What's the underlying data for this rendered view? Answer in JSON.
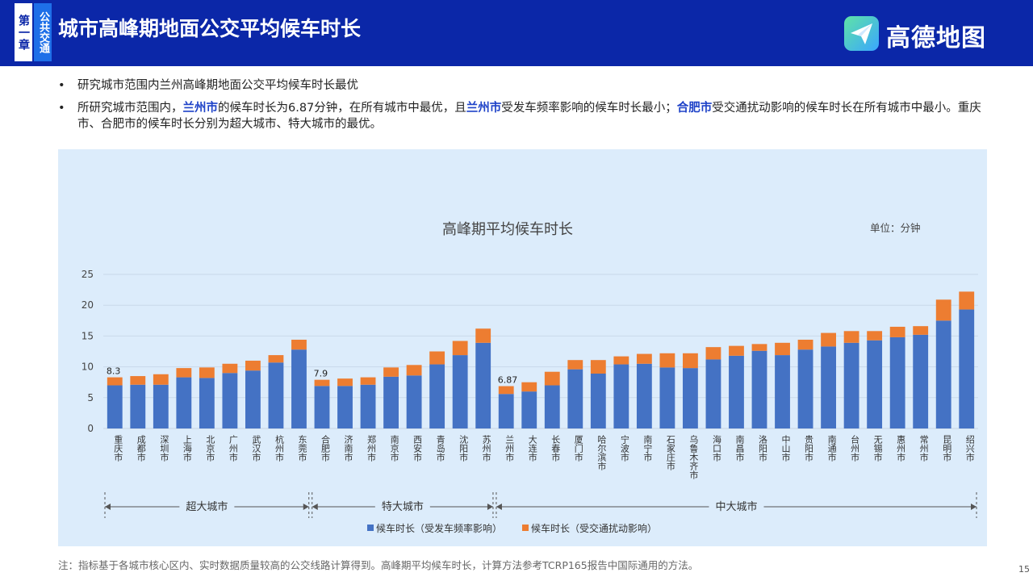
{
  "header": {
    "chapter_label": "第一章",
    "section_label": "公共交通",
    "title": "城市高峰期地面公交平均候车时长",
    "logo_text": "高德地图"
  },
  "bullets": [
    {
      "text": "研究城市范围内兰州高峰期地面公交平均候车时长最优"
    },
    {
      "seg1": "所研究城市范围内，",
      "seg2": "兰州市",
      "seg3": "的候车时长为6.87分钟，在所有城市中最优，且",
      "seg4": "兰州市",
      "seg5": "受发车频率影响的候车时长最小；",
      "seg6": "合肥市",
      "seg7": "受交通扰动影响的候车时长在所有城市中最小。重庆市、合肥市的候车时长分别为超大城市、特大城市的最优。"
    }
  ],
  "chart_data": {
    "type": "bar",
    "stacked": true,
    "title": "高峰期平均候车时长",
    "unit_label": "单位：分钟",
    "ylim": [
      0,
      25
    ],
    "yticks": [
      0,
      5,
      10,
      15,
      20,
      25
    ],
    "grid": true,
    "legend_position": "bottom",
    "categories": [
      "重庆市",
      "成都市",
      "深圳市",
      "上海市",
      "北京市",
      "广州市",
      "武汉市",
      "杭州市",
      "东莞市",
      "合肥市",
      "济南市",
      "郑州市",
      "南京市",
      "西安市",
      "青岛市",
      "沈阳市",
      "苏州市",
      "兰州市",
      "大连市",
      "长春市",
      "厦门市",
      "哈尔滨市",
      "宁波市",
      "南宁市",
      "石家庄市",
      "乌鲁木齐市",
      "海口市",
      "南昌市",
      "洛阳市",
      "中山市",
      "贵阳市",
      "南通市",
      "台州市",
      "无锡市",
      "惠州市",
      "常州市",
      "昆明市",
      "绍兴市"
    ],
    "series": [
      {
        "name": "候车时长（受发车频率影响）",
        "color": "#4472c4",
        "values": [
          7.0,
          7.1,
          7.1,
          8.3,
          8.2,
          9.0,
          9.4,
          10.7,
          12.8,
          6.9,
          6.9,
          7.1,
          8.4,
          8.6,
          10.4,
          11.9,
          13.9,
          5.6,
          6.0,
          7.0,
          9.6,
          8.9,
          10.4,
          10.5,
          9.9,
          9.8,
          11.2,
          11.8,
          12.6,
          11.9,
          12.8,
          13.3,
          13.9,
          14.3,
          14.8,
          15.2,
          17.5,
          19.3
        ]
      },
      {
        "name": "候车时长（受交通扰动影响）",
        "color": "#ed7d31",
        "values": [
          1.3,
          1.4,
          1.7,
          1.5,
          1.7,
          1.5,
          1.6,
          1.2,
          1.6,
          1.0,
          1.2,
          1.2,
          1.5,
          1.7,
          2.1,
          2.3,
          2.3,
          1.27,
          1.5,
          2.2,
          1.5,
          2.2,
          1.3,
          1.6,
          2.3,
          2.4,
          2.0,
          1.6,
          1.1,
          2.0,
          1.6,
          2.2,
          1.9,
          1.5,
          1.7,
          1.4,
          3.4,
          2.9
        ]
      }
    ],
    "data_labels": [
      {
        "category": "重庆市",
        "text": "8.3"
      },
      {
        "category": "合肥市",
        "text": "7.9"
      },
      {
        "category": "兰州市",
        "text": "6.87"
      }
    ],
    "groups": [
      {
        "label": "超大城市",
        "from": "重庆市",
        "to": "东莞市"
      },
      {
        "label": "特大城市",
        "from": "合肥市",
        "to": "苏州市"
      },
      {
        "label": "中大城市",
        "from": "兰州市",
        "to": "绍兴市"
      }
    ]
  },
  "footer": {
    "note": "注：指标基于各城市核心区内、实时数据质量较高的公交线路计算得到。高峰期平均候车时长，计算方法参考TCRP165报告中国际通用的方法。",
    "page_number": "15"
  }
}
